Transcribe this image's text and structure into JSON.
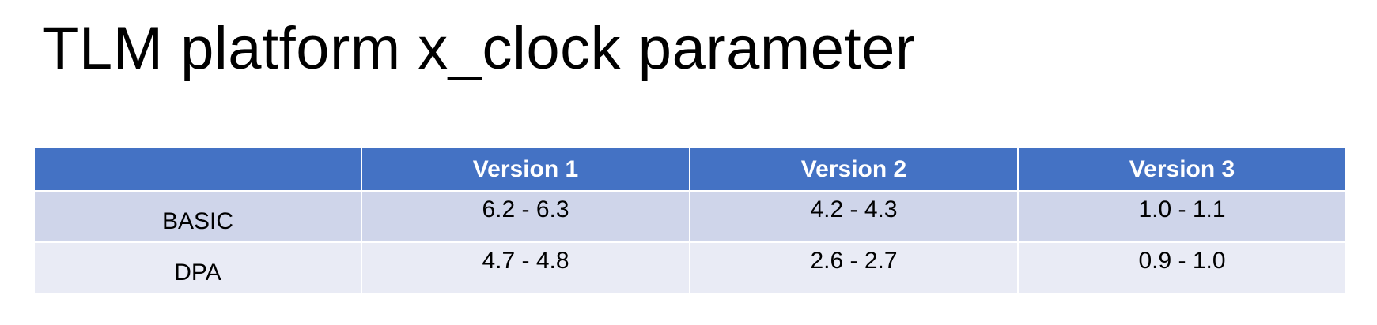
{
  "slide": {
    "title": "TLM platform x_clock parameter"
  },
  "table": {
    "corner_header": "",
    "columns": [
      "Version 1",
      "Version 2",
      "Version 3"
    ],
    "rows": [
      {
        "label": "BASIC",
        "values": [
          "6.2 - 6.3",
          "4.2 - 4.3",
          "1.0 - 1.1"
        ]
      },
      {
        "label": "DPA",
        "values": [
          "4.7 - 4.8",
          "2.6 - 2.7",
          "0.9 - 1.0"
        ]
      }
    ]
  },
  "colors": {
    "header_bg": "#4472c4",
    "row_odd_bg": "#cfd5ea",
    "row_even_bg": "#e9ebf5",
    "header_text": "#ffffff"
  }
}
